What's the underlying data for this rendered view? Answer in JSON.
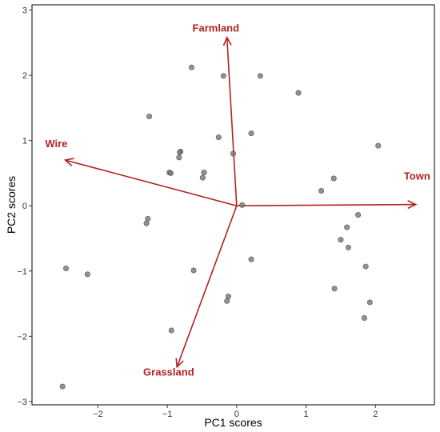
{
  "chart_data": {
    "type": "scatter",
    "title": "",
    "xlabel": "PC1 scores",
    "ylabel": "PC2 scores",
    "xlim": [
      -2.95,
      2.85
    ],
    "ylim": [
      -3.05,
      3.08
    ],
    "xticks": [
      -2,
      -1,
      0,
      1,
      2
    ],
    "yticks": [
      -3,
      -2,
      -1,
      0,
      1,
      2,
      3
    ],
    "xtick_labels": [
      "−2",
      "−1",
      "0",
      "1",
      "2"
    ],
    "ytick_labels": [
      "−3",
      "−2",
      "−1",
      "0",
      "1",
      "2",
      "3"
    ],
    "grid": false,
    "point_color": "#777777",
    "arrow_color": "#b22222",
    "points": [
      {
        "x": -0.65,
        "y": 2.12
      },
      {
        "x": -0.19,
        "y": 1.99
      },
      {
        "x": 0.34,
        "y": 1.99
      },
      {
        "x": 0.89,
        "y": 1.73
      },
      {
        "x": -1.26,
        "y": 1.37
      },
      {
        "x": 0.21,
        "y": 1.11
      },
      {
        "x": -0.26,
        "y": 1.05
      },
      {
        "x": 2.04,
        "y": 0.92
      },
      {
        "x": -0.81,
        "y": 0.83
      },
      {
        "x": -0.82,
        "y": 0.82
      },
      {
        "x": -0.83,
        "y": 0.74
      },
      {
        "x": -0.05,
        "y": 0.8
      },
      {
        "x": -0.97,
        "y": 0.51
      },
      {
        "x": -0.95,
        "y": 0.5
      },
      {
        "x": -0.47,
        "y": 0.51
      },
      {
        "x": -0.49,
        "y": 0.43
      },
      {
        "x": 1.4,
        "y": 0.42
      },
      {
        "x": 1.22,
        "y": 0.23
      },
      {
        "x": 0.08,
        "y": 0.01
      },
      {
        "x": 1.75,
        "y": -0.14
      },
      {
        "x": -1.28,
        "y": -0.2
      },
      {
        "x": -1.3,
        "y": -0.27
      },
      {
        "x": 1.59,
        "y": -0.33
      },
      {
        "x": 1.5,
        "y": -0.52
      },
      {
        "x": 1.61,
        "y": -0.64
      },
      {
        "x": 0.21,
        "y": -0.82
      },
      {
        "x": -2.46,
        "y": -0.96
      },
      {
        "x": -2.15,
        "y": -1.05
      },
      {
        "x": -0.62,
        "y": -0.99
      },
      {
        "x": 1.86,
        "y": -0.93
      },
      {
        "x": 1.41,
        "y": -1.27
      },
      {
        "x": -0.12,
        "y": -1.39
      },
      {
        "x": -0.14,
        "y": -1.46
      },
      {
        "x": 1.92,
        "y": -1.48
      },
      {
        "x": 1.84,
        "y": -1.72
      },
      {
        "x": -0.94,
        "y": -1.91
      },
      {
        "x": -2.51,
        "y": -2.77
      }
    ],
    "loadings": [
      {
        "name": "Farmland",
        "x": -0.14,
        "y": 2.58,
        "label_x": -0.3,
        "label_y": 2.67
      },
      {
        "name": "Wire",
        "x": -2.47,
        "y": 0.7,
        "label_x": -2.6,
        "label_y": 0.9
      },
      {
        "name": "Town",
        "x": 2.58,
        "y": 0.02,
        "label_x": 2.6,
        "label_y": 0.4
      },
      {
        "name": "Grassland",
        "x": -0.86,
        "y": -2.47,
        "label_x": -0.98,
        "label_y": -2.6
      }
    ]
  }
}
